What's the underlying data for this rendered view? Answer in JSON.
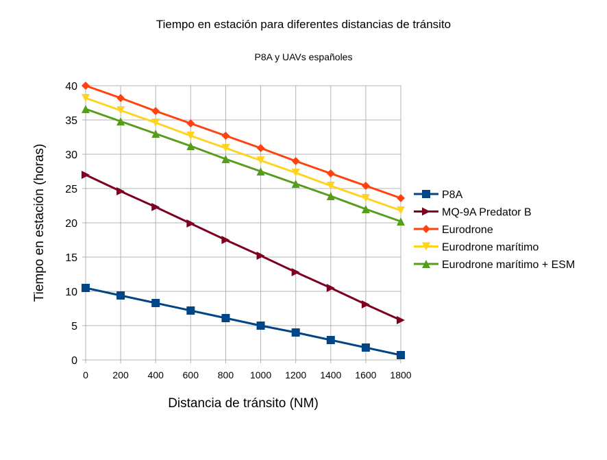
{
  "chart_data": {
    "type": "line",
    "title": "Tiempo en estación para diferentes distancias de tránsito",
    "subtitle": "P8A y UAVs españoles",
    "xlabel": "Distancia de tránsito (NM)",
    "ylabel": "Tiempo en estación (horas)",
    "x": [
      0,
      200,
      400,
      600,
      800,
      1000,
      1200,
      1400,
      1600,
      1800
    ],
    "xlim": [
      0,
      1800
    ],
    "ylim": [
      0,
      40
    ],
    "yticks": [
      0,
      5,
      10,
      15,
      20,
      25,
      30,
      35,
      40
    ],
    "grid": true,
    "legend": "right",
    "series": [
      {
        "name": "P8A",
        "color": "#004586",
        "marker": "square",
        "values": [
          10.5,
          9.4,
          8.3,
          7.2,
          6.1,
          5.0,
          4.0,
          2.9,
          1.8,
          0.7
        ]
      },
      {
        "name": "MQ-9A Predator B",
        "color": "#7e0021",
        "marker": "triangle-right",
        "values": [
          27.0,
          24.6,
          22.3,
          19.9,
          17.5,
          15.2,
          12.8,
          10.5,
          8.1,
          5.8
        ]
      },
      {
        "name": "Eurodrone",
        "color": "#ff420e",
        "marker": "diamond",
        "values": [
          40.0,
          38.2,
          36.3,
          34.5,
          32.7,
          30.9,
          29.0,
          27.2,
          25.4,
          23.6
        ]
      },
      {
        "name": "Eurodrone marítimo",
        "color": "#ffd320",
        "marker": "triangle-down",
        "values": [
          38.2,
          36.4,
          34.6,
          32.7,
          30.9,
          29.1,
          27.3,
          25.4,
          23.6,
          21.8
        ]
      },
      {
        "name": "Eurodrone marítimo + ESM",
        "color": "#579d1c",
        "marker": "triangle-up",
        "values": [
          36.6,
          34.8,
          33.0,
          31.2,
          29.3,
          27.5,
          25.7,
          23.9,
          22.0,
          20.2
        ]
      }
    ]
  }
}
